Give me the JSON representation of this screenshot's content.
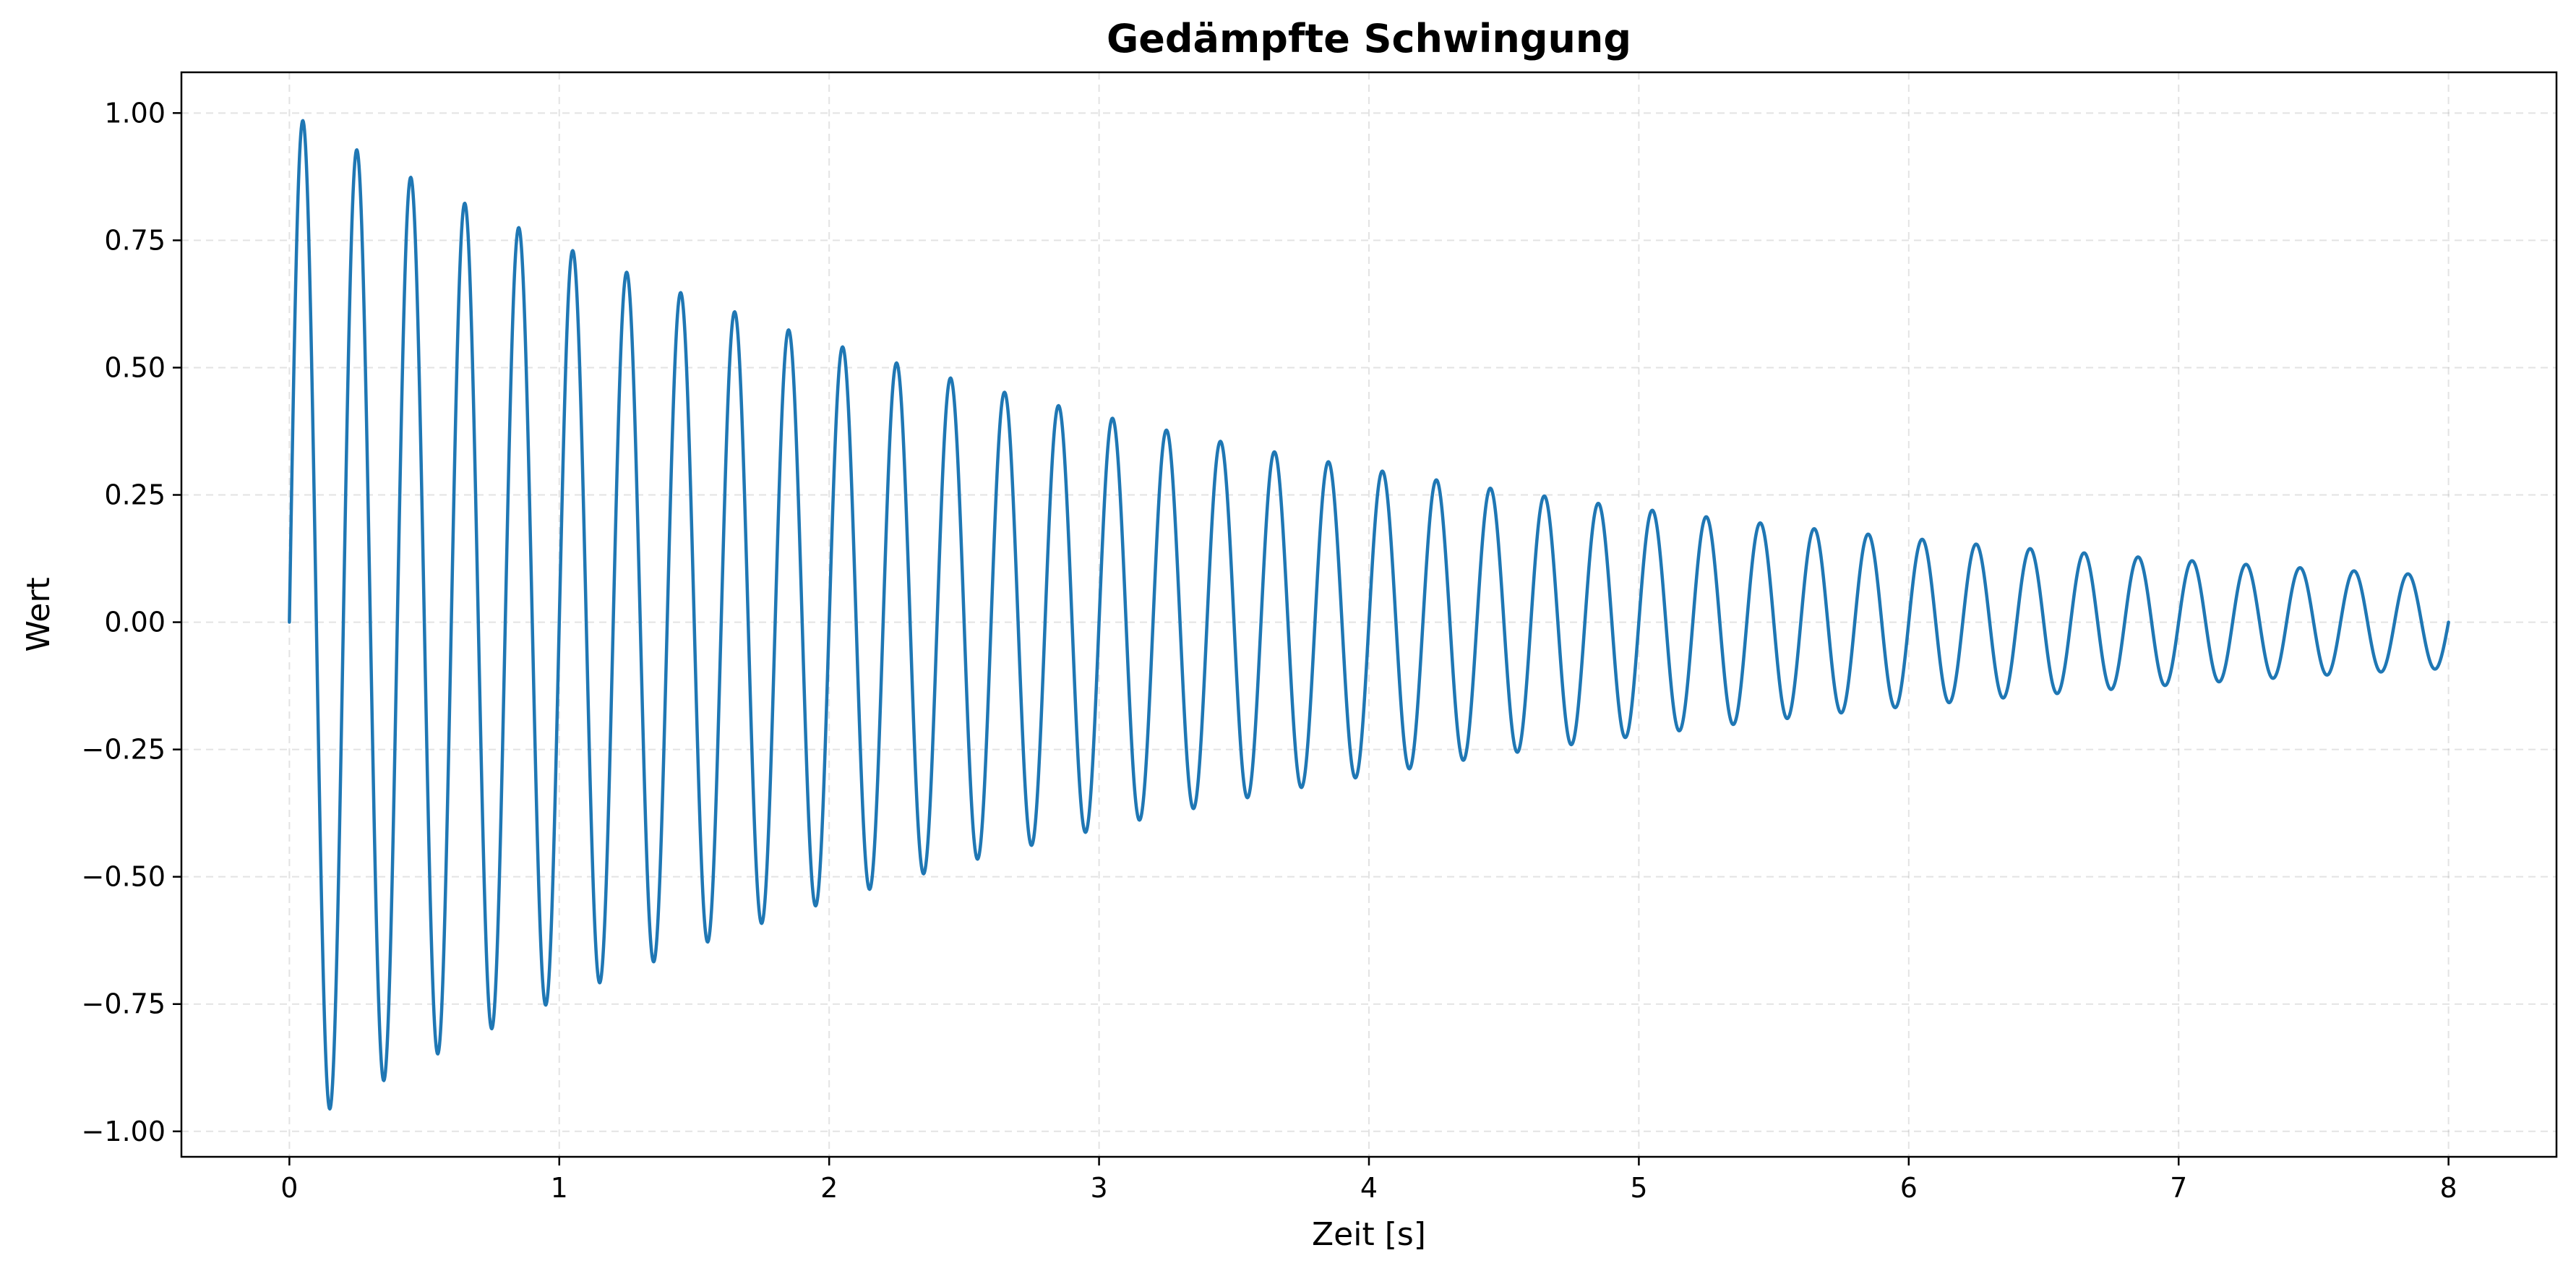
{
  "chart_data": {
    "type": "line",
    "title": "Gedämpfte Schwingung",
    "xlabel": "Zeit [s]",
    "ylabel": "Wert",
    "xlim": [
      -0.4,
      8.4
    ],
    "ylim": [
      -1.05,
      1.08
    ],
    "x_ticks": [
      0,
      1,
      2,
      3,
      4,
      5,
      6,
      7,
      8
    ],
    "x_tick_labels": [
      "0",
      "1",
      "2",
      "3",
      "4",
      "5",
      "6",
      "7",
      "8"
    ],
    "y_ticks": [
      -1.0,
      -0.75,
      -0.5,
      -0.25,
      0.0,
      0.25,
      0.5,
      0.75,
      1.0
    ],
    "y_tick_labels": [
      "−1.00",
      "−0.75",
      "−0.50",
      "−0.25",
      "0.00",
      "0.25",
      "0.50",
      "0.75",
      "1.00"
    ],
    "grid": true,
    "legend": "none",
    "line_color": "#1f77b4",
    "series": [
      {
        "x_range": [
          0,
          8
        ],
        "curve": "exp(-0.3*x)*sin(2*pi*5*x)",
        "local_extrema": [
          {
            "x": 0.05,
            "y": 0.985
          },
          {
            "x": 0.15,
            "y": -0.956
          },
          {
            "x": 0.25,
            "y": 0.928
          },
          {
            "x": 0.35,
            "y": -0.9
          },
          {
            "x": 0.45,
            "y": 0.874
          },
          {
            "x": 1.05,
            "y": 0.73
          },
          {
            "x": 2.05,
            "y": 0.541
          },
          {
            "x": 3.05,
            "y": 0.401
          },
          {
            "x": 4.05,
            "y": 0.297
          },
          {
            "x": 5.05,
            "y": 0.22
          },
          {
            "x": 6.05,
            "y": 0.163
          },
          {
            "x": 7.05,
            "y": 0.121
          },
          {
            "x": 7.85,
            "y": 0.095
          },
          {
            "x": 7.95,
            "y": -0.092
          }
        ]
      }
    ]
  }
}
